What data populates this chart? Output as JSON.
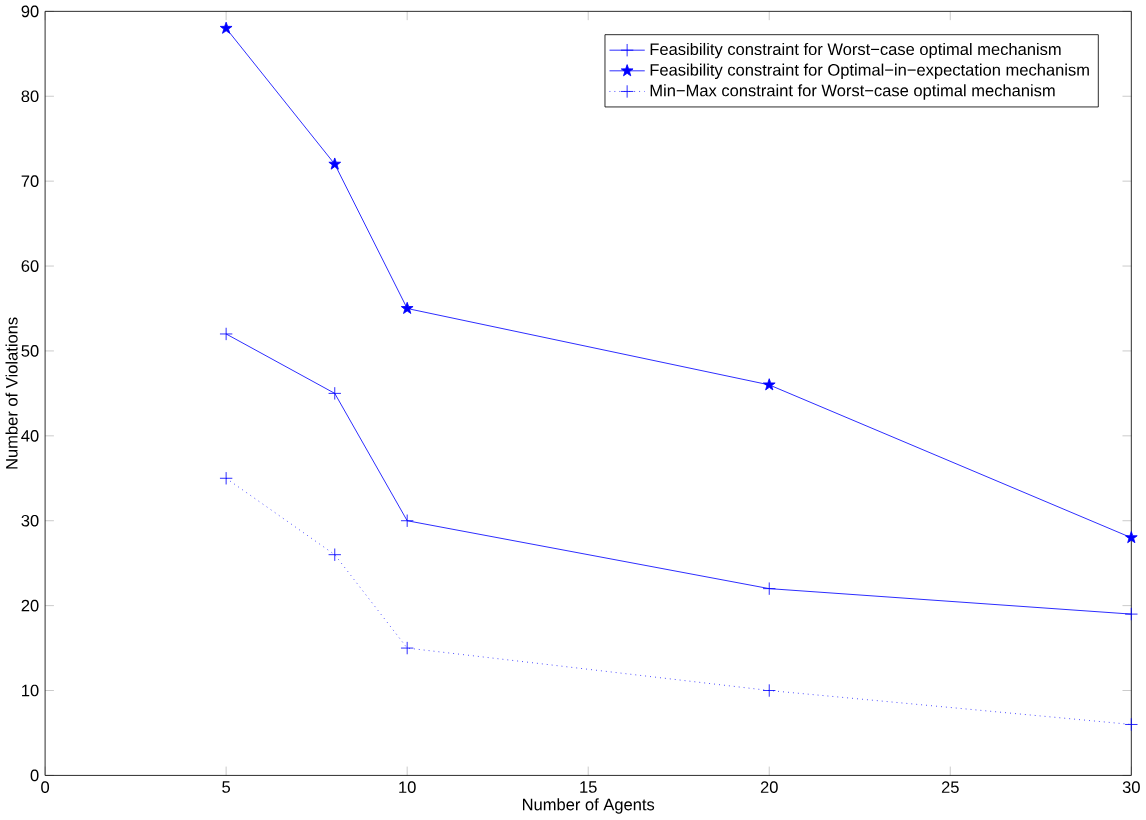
{
  "chart_data": {
    "type": "line",
    "xlabel": "Number of Agents",
    "ylabel": "Number of Violations",
    "x": [
      5,
      8,
      10,
      20,
      30
    ],
    "series": [
      {
        "name": "Feasibility constraint for Worst−case optimal mechanism",
        "color": "#0000ff",
        "marker": "cross",
        "line_style": "solid",
        "values": [
          52,
          45,
          30,
          22,
          19
        ]
      },
      {
        "name": "Feasibility constraint for Optimal−in−expectation mechanism",
        "color": "#0000ff",
        "marker": "star",
        "line_style": "solid",
        "values": [
          88,
          72,
          55,
          46,
          28
        ]
      },
      {
        "name": "Min−Max constraint for Worst−case optimal mechanism",
        "color": "#0000ff",
        "marker": "cross",
        "line_style": "dotted",
        "values": [
          35,
          26,
          15,
          10,
          6
        ]
      }
    ],
    "xlim": [
      0,
      30
    ],
    "ylim": [
      0,
      90
    ],
    "xticks": [
      0,
      5,
      10,
      15,
      20,
      25,
      30
    ],
    "yticks": [
      0,
      10,
      20,
      30,
      40,
      50,
      60,
      70,
      80,
      90
    ],
    "grid": false,
    "legend": "top right"
  }
}
